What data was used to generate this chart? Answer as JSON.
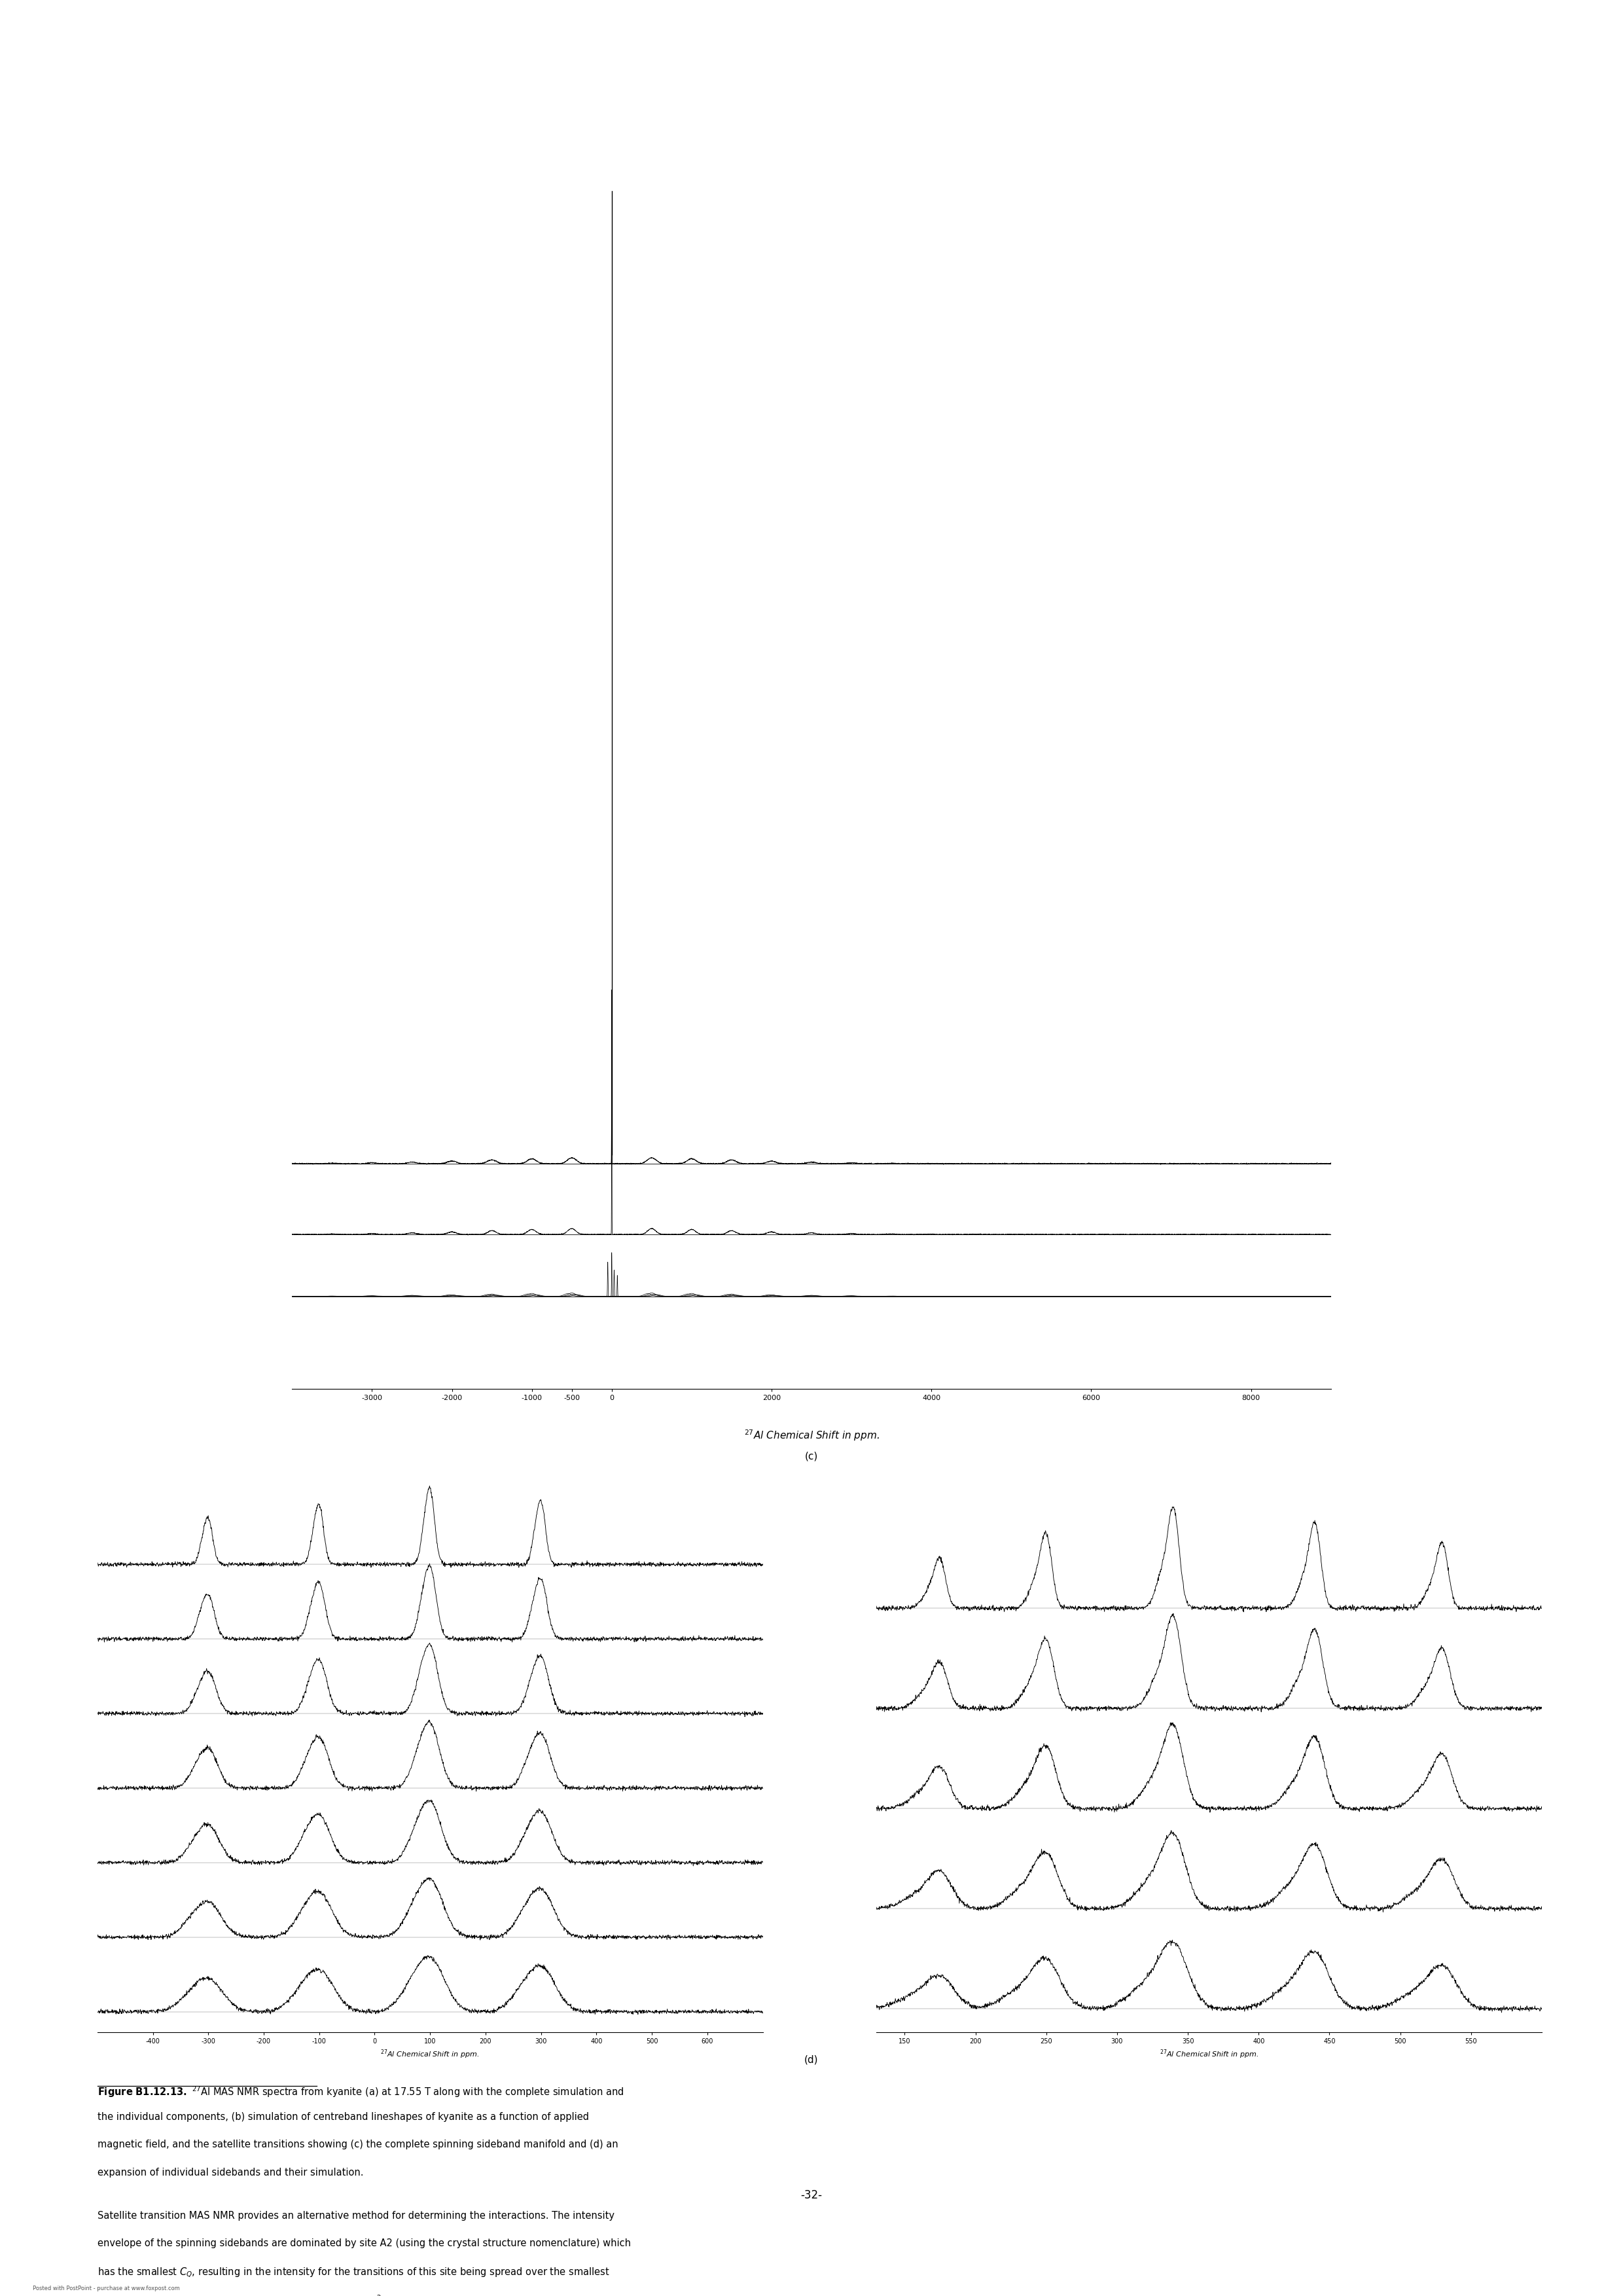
{
  "figure_width": 24.8,
  "figure_height": 35.08,
  "bg_color": "#ffffff",
  "panel_c_label": "(c)",
  "panel_d_label": "(d)",
  "xaxis_label_a": "27Al Chemical Shift in ppm.",
  "xaxis_ticks_a_vals": [
    -3000,
    -2000,
    -1000,
    -500,
    0,
    2000,
    4000,
    6000,
    8000
  ],
  "xaxis_ticks_a_strs": [
    "-3000",
    "-2000",
    "-1000",
    "-500",
    "0",
    "2000",
    "4000",
    "6000",
    "8000"
  ],
  "xaxis_label_cd": "27Al Chemical Shift in ppm.",
  "page_number": "-32-",
  "caption_bold": "Figure B1.12.13.",
  "caption_rest": " 27Al MAS NMR spectra from kyanite (a) at 17.55 T along with the complete simulation and\nthe individual components, (b) simulation of centreband lineshapes of kyanite as a function of applied\nmagnetic field, and the satellite transitions showing (c) the complete spinning sideband manifold and (d) an\nexpansion of individual sidebands and their simulation.",
  "body_text": "Satellite transition MAS NMR provides an alternative method for determining the interactions. The intensity\nenvelope of the spinning sidebands are dominated by site A2 (using the crystal structure nomenclature) which\nhas the smallest C_Q, resulting in the intensity for the transitions of this site being spread over the smallest\nrange (proportional C_Q), and will have the narrowest sidebands of all the sites (figure B1.12.13(c)) [37]. The\nsimulation of this envelope provides additional constraints on the quadrupole interaction parameters for this\nsite. Expanding the sidebands (shown for the range 650 to 250 ppm in figure B1.12.13(d) reveals distinct\nsecond-order lineshapes with each of the four sites providing contributions from the"
}
